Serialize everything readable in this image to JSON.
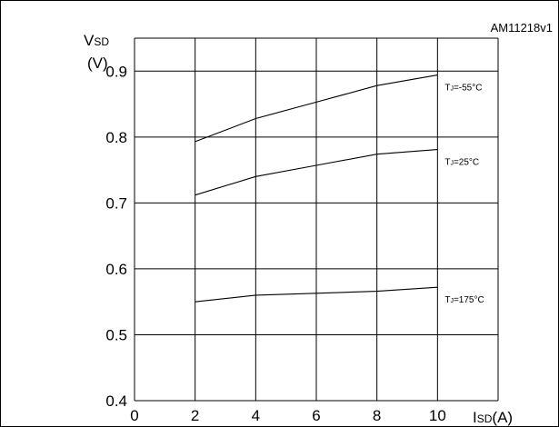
{
  "figure_code": "AM11218v1",
  "chart_data": {
    "type": "line",
    "xlabel": {
      "main": "I",
      "sub": "SD",
      "unit": "(A)"
    },
    "ylabel": {
      "main": "V",
      "sub": "SD",
      "unit": "(V)"
    },
    "xlim": [
      0,
      12
    ],
    "ylim": [
      0.4,
      0.95
    ],
    "x_ticks": [
      0,
      2,
      4,
      6,
      8,
      10
    ],
    "x_tick_labels": [
      "0",
      "2",
      "4",
      "6",
      "8",
      "10"
    ],
    "y_ticks": [
      0.4,
      0.5,
      0.6,
      0.7,
      0.8,
      0.9
    ],
    "y_tick_labels": [
      "0.4",
      "0.5",
      "0.6",
      "0.7",
      "0.8",
      "0.9"
    ],
    "grid": true,
    "series": [
      {
        "name": "TJ=-55°C",
        "name_main": "T",
        "name_sub": "J",
        "name_rest": "=-55°C",
        "x": [
          2,
          4,
          6,
          8,
          10
        ],
        "y": [
          0.793,
          0.828,
          0.853,
          0.878,
          0.894
        ]
      },
      {
        "name": "TJ=25°C",
        "name_main": "T",
        "name_sub": "J",
        "name_rest": "=25°C",
        "x": [
          2,
          4,
          6,
          8,
          10
        ],
        "y": [
          0.712,
          0.74,
          0.757,
          0.774,
          0.781
        ]
      },
      {
        "name": "TJ=175°C",
        "name_main": "T",
        "name_sub": "J",
        "name_rest": "=175°C",
        "x": [
          2,
          4,
          6,
          8,
          10
        ],
        "y": [
          0.55,
          0.56,
          0.563,
          0.566,
          0.572
        ]
      }
    ]
  }
}
